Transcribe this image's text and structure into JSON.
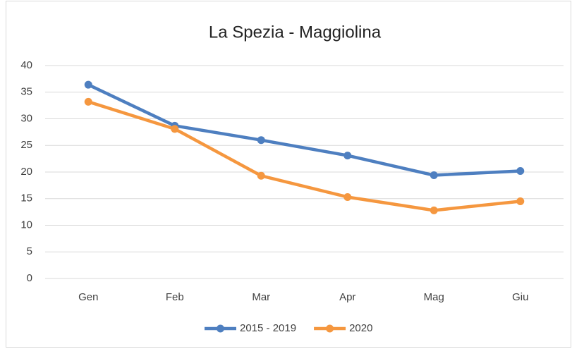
{
  "chart_data": {
    "type": "line",
    "title": "La Spezia - Maggiolina",
    "categories": [
      "Gen",
      "Feb",
      "Mar",
      "Apr",
      "Mag",
      "Giu"
    ],
    "series": [
      {
        "name": "2015 - 2019",
        "color": "#4e7fc0",
        "values": [
          36.4,
          28.7,
          26.0,
          23.1,
          19.4,
          20.2
        ]
      },
      {
        "name": "2020",
        "color": "#f5973f",
        "values": [
          33.2,
          28.1,
          19.3,
          15.3,
          12.8,
          14.5
        ]
      }
    ],
    "ylim": [
      0,
      40
    ],
    "yticks": [
      0,
      5,
      10,
      15,
      20,
      25,
      30,
      35,
      40
    ],
    "grid": true,
    "legend": "bottom"
  }
}
